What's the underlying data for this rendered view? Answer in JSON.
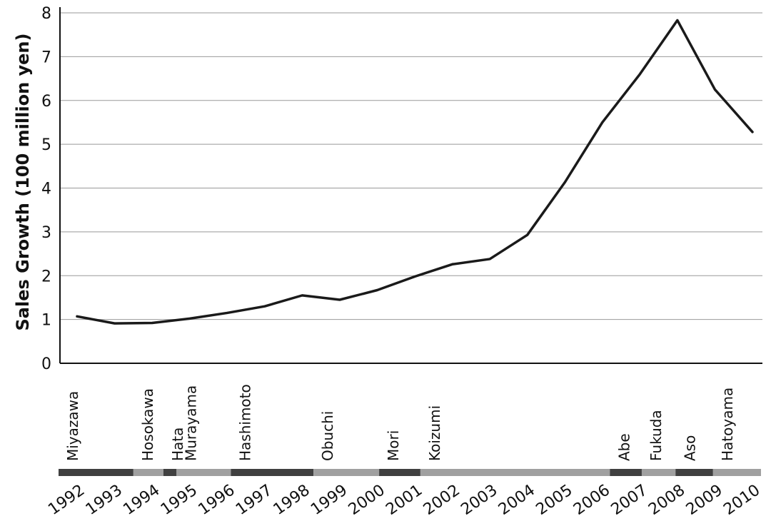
{
  "chart_data": {
    "type": "line",
    "ylabel": "Sales Growth (100 million yen)",
    "xlabel": "",
    "ylim": [
      0,
      8
    ],
    "yticks": [
      "0",
      "1",
      "2",
      "3",
      "4",
      "5",
      "6",
      "7",
      "8"
    ],
    "grid": true,
    "x": [
      "1992",
      "1993",
      "1994",
      "1995",
      "1996",
      "1997",
      "1998",
      "1999",
      "2000",
      "2001",
      "2002",
      "2003",
      "2004",
      "2005",
      "2006",
      "2007",
      "2008",
      "2009",
      "2010"
    ],
    "series": [
      {
        "values": [
          1.07,
          0.91,
          0.92,
          1.02,
          1.15,
          1.3,
          1.55,
          1.45,
          1.67,
          1.98,
          2.26,
          2.38,
          2.93,
          4.13,
          5.5,
          6.6,
          7.83,
          6.25,
          5.28
        ]
      }
    ],
    "colors": {
      "line": "#1a1a1a",
      "grid": "#999999",
      "dark_band": "#404040",
      "light_band": "#a0a0a0"
    },
    "prime_ministers": [
      {
        "name": "Miyazawa",
        "start": 1992.0,
        "end": 1993.5,
        "shade": "dark"
      },
      {
        "name": "Hosokawa",
        "start": 1993.5,
        "end": 1994.3,
        "shade": "light"
      },
      {
        "name": "Hata",
        "start": 1994.3,
        "end": 1994.65,
        "shade": "dark"
      },
      {
        "name": "Murayama",
        "start": 1994.65,
        "end": 1996.1,
        "shade": "light"
      },
      {
        "name": "Hashimoto",
        "start": 1996.1,
        "end": 1998.3,
        "shade": "dark"
      },
      {
        "name": "Obuchi",
        "start": 1998.3,
        "end": 2000.05,
        "shade": "light"
      },
      {
        "name": "Mori",
        "start": 2000.05,
        "end": 2001.15,
        "shade": "dark"
      },
      {
        "name": "Koizumi",
        "start": 2001.15,
        "end": 2006.2,
        "shade": "light"
      },
      {
        "name": "Abe",
        "start": 2006.2,
        "end": 2007.05,
        "shade": "dark"
      },
      {
        "name": "Fukuda",
        "start": 2007.05,
        "end": 2007.95,
        "shade": "light"
      },
      {
        "name": "Aso",
        "start": 2007.95,
        "end": 2008.95,
        "shade": "dark"
      },
      {
        "name": "Hatoyama",
        "start": 2008.95,
        "end": 2010.0,
        "shade": "light"
      }
    ]
  }
}
